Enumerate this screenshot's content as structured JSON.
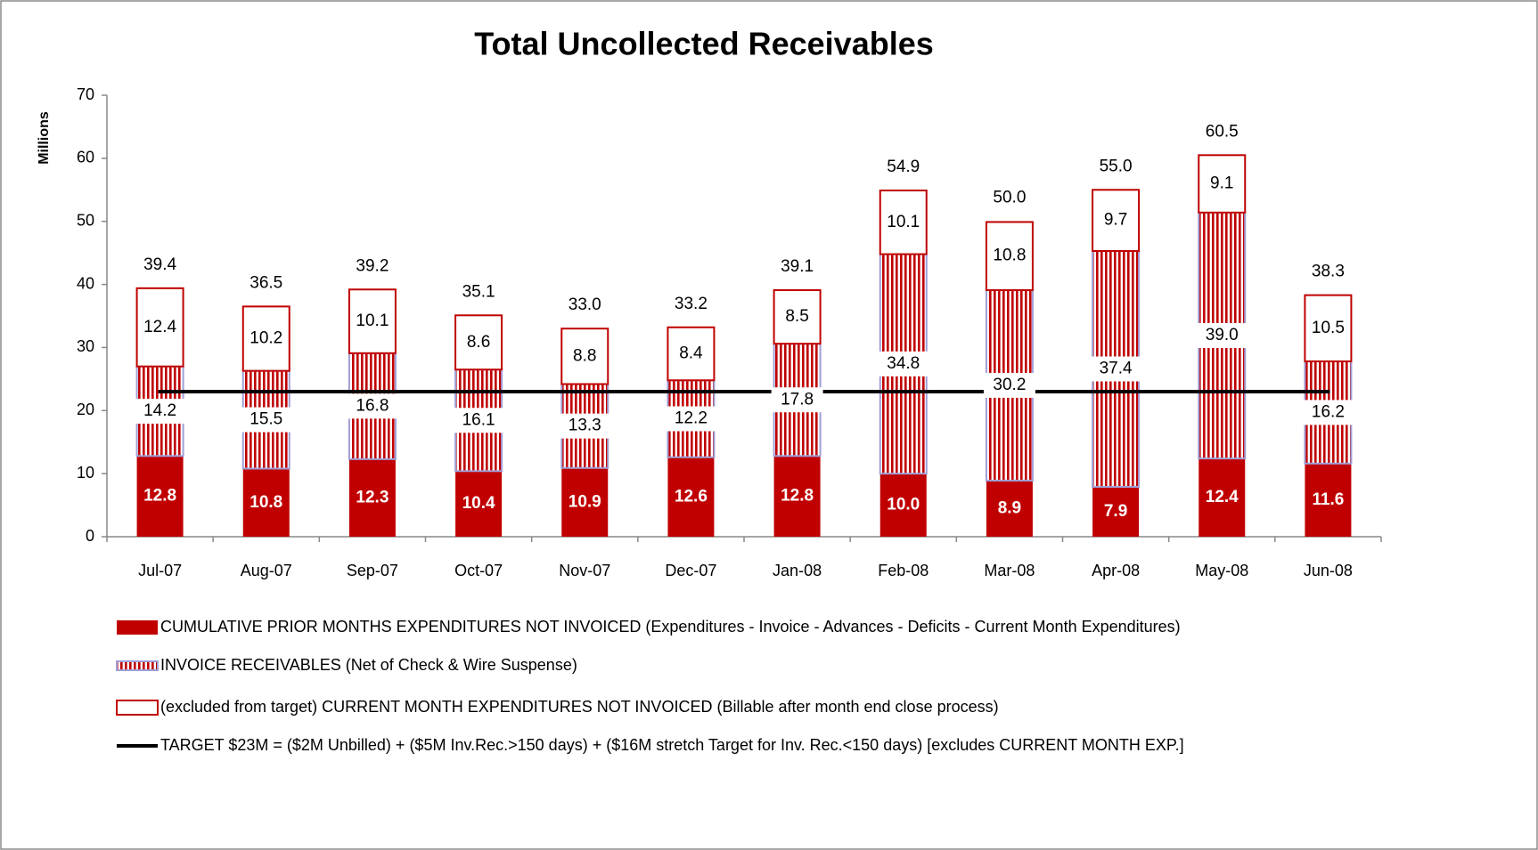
{
  "chart_data": {
    "type": "stacked-bar",
    "title": "Total Uncollected Receivables",
    "y_label": "Millions",
    "categories": [
      "Jul-07",
      "Aug-07",
      "Sep-07",
      "Oct-07",
      "Nov-07",
      "Dec-07",
      "Jan-08",
      "Feb-08",
      "Mar-08",
      "Apr-08",
      "May-08",
      "Jun-08"
    ],
    "series": [
      {
        "name": "CUMULATIVE  PRIOR  MONTHS  EXPENDITURES  NOT INVOICED  (Expenditures - Invoice - Advances - Deficits - Current Month  Expenditures)",
        "color": "#c00000",
        "style": "solid",
        "values": [
          12.8,
          10.8,
          12.3,
          10.4,
          10.9,
          12.6,
          12.8,
          10.0,
          8.9,
          7.9,
          12.4,
          11.6
        ],
        "value_labels": [
          "12.8",
          "10.8",
          "12.3",
          "10.4",
          "10.9",
          "12.6",
          "12.8",
          "10.0",
          "8.9",
          "7.9",
          "12.4",
          "11.6"
        ]
      },
      {
        "name": "INVOICE RECEIVABLES  (Net of Check & Wire Suspense)",
        "color": "#c00000",
        "border": "#a0a0d8",
        "style": "striped",
        "values": [
          14.2,
          15.5,
          16.8,
          16.1,
          13.3,
          12.2,
          17.8,
          34.8,
          30.2,
          37.4,
          39.0,
          16.2
        ],
        "value_labels": [
          "14.2",
          "15.5",
          "16.8",
          "16.1",
          "13.3",
          "12.2",
          "17.8",
          "34.8",
          "30.2",
          "37.4",
          "39.0",
          "16.2"
        ]
      },
      {
        "name": "(excluded from target)  CURRENT  MONTH  EXPENDITURES  NOT INVOICED  (Billable  after  month  end close process)",
        "color": "#c00000",
        "style": "outline",
        "values": [
          12.4,
          10.2,
          10.1,
          8.6,
          8.8,
          8.4,
          8.5,
          10.1,
          10.8,
          9.7,
          9.1,
          10.5
        ],
        "value_labels": [
          "12.4",
          "10.2",
          "10.1",
          "8.6",
          "8.8",
          "8.4",
          "8.5",
          "10.1",
          "10.8",
          "9.7",
          "9.1",
          "10.5"
        ]
      }
    ],
    "totals": [
      39.4,
      36.5,
      39.2,
      35.1,
      33.0,
      33.2,
      39.1,
      54.9,
      50.0,
      55.0,
      60.5,
      38.3
    ],
    "totals_labels": [
      "39.4",
      "36.5",
      "39.2",
      "35.1",
      "33.0",
      "33.2",
      "39.1",
      "54.9",
      "50.0",
      "55.0",
      "60.5",
      "38.3"
    ],
    "target": 23,
    "target_color": "#000000",
    "target_label": "TARGET $23M =  ($2M Unbilled)  +  ($5M Inv.Rec.>150 days)  +  ($16M stretch Target for Inv. Rec.<150 days)  [excludes CURRENT  MONTH  EXP.]",
    "ylim": [
      0,
      70
    ],
    "yticks": [
      0,
      10,
      20,
      30,
      40,
      50,
      60,
      70
    ]
  }
}
